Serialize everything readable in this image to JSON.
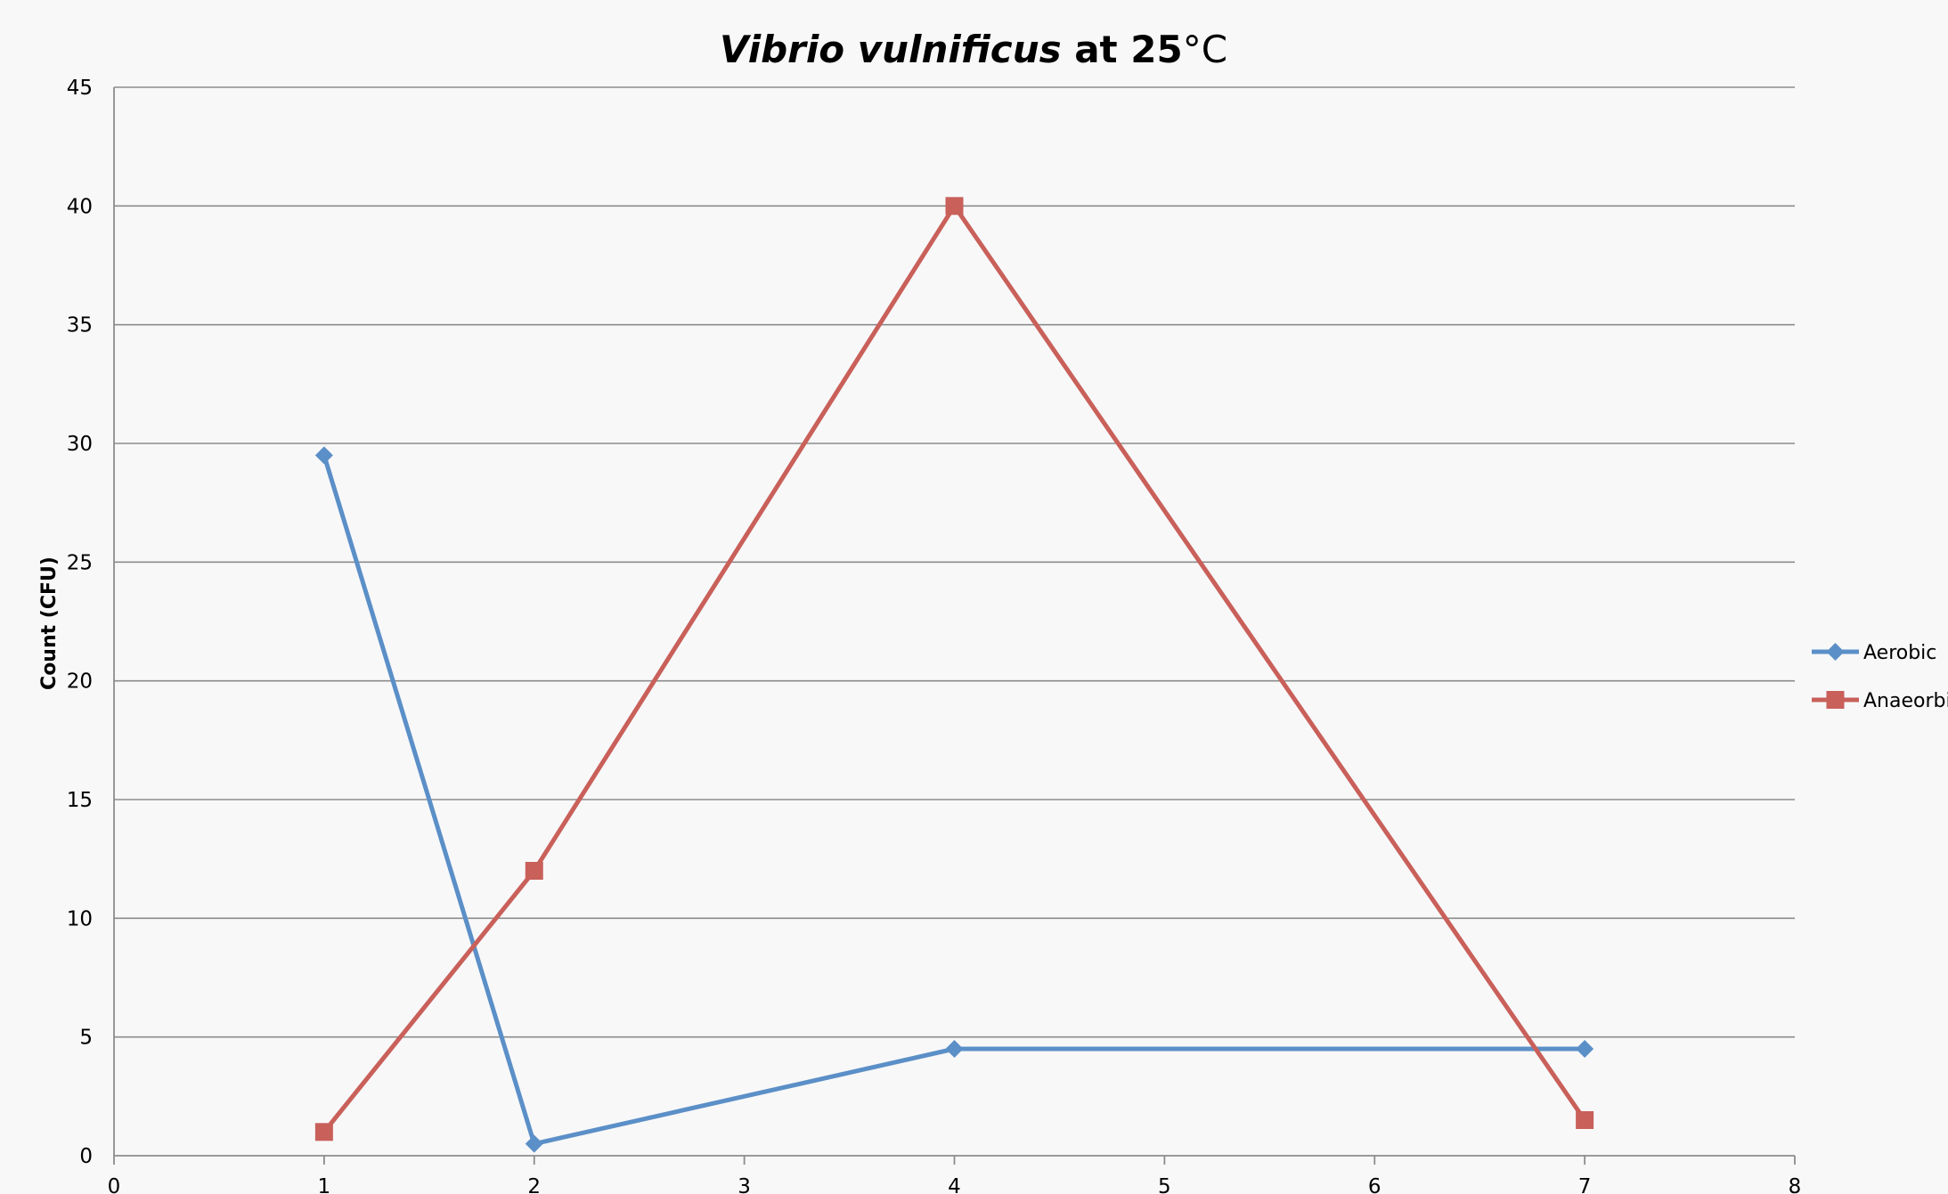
{
  "chart_data": {
    "type": "line",
    "title_parts": [
      {
        "text": "Vibrio vulnificus",
        "style": "bold-italic"
      },
      {
        "text": " at 25",
        "style": "bold"
      },
      {
        "text": "°C",
        "style": "normal"
      }
    ],
    "xlabel": "",
    "ylabel": "Count (CFU)",
    "xlim": [
      0,
      8
    ],
    "ylim": [
      0,
      45
    ],
    "x_ticks": [
      "0",
      "1",
      "2",
      "3",
      "4",
      "5",
      "6",
      "7",
      "8"
    ],
    "y_ticks": [
      "0",
      "5",
      "10",
      "15",
      "20",
      "25",
      "30",
      "35",
      "40",
      "45"
    ],
    "grid": "horizontal",
    "legend_position": "right",
    "series": [
      {
        "name": "Aerobic",
        "color": "#5b8fc7",
        "marker": "diamond",
        "points": [
          [
            1,
            29.5
          ],
          [
            2,
            0.5
          ],
          [
            4,
            4.5
          ],
          [
            7,
            4.5
          ]
        ]
      },
      {
        "name": "Anaeorbic",
        "color": "#c9605a",
        "marker": "square",
        "points": [
          [
            1,
            1
          ],
          [
            2,
            12
          ],
          [
            4,
            40
          ],
          [
            7,
            1.5
          ]
        ]
      }
    ]
  }
}
